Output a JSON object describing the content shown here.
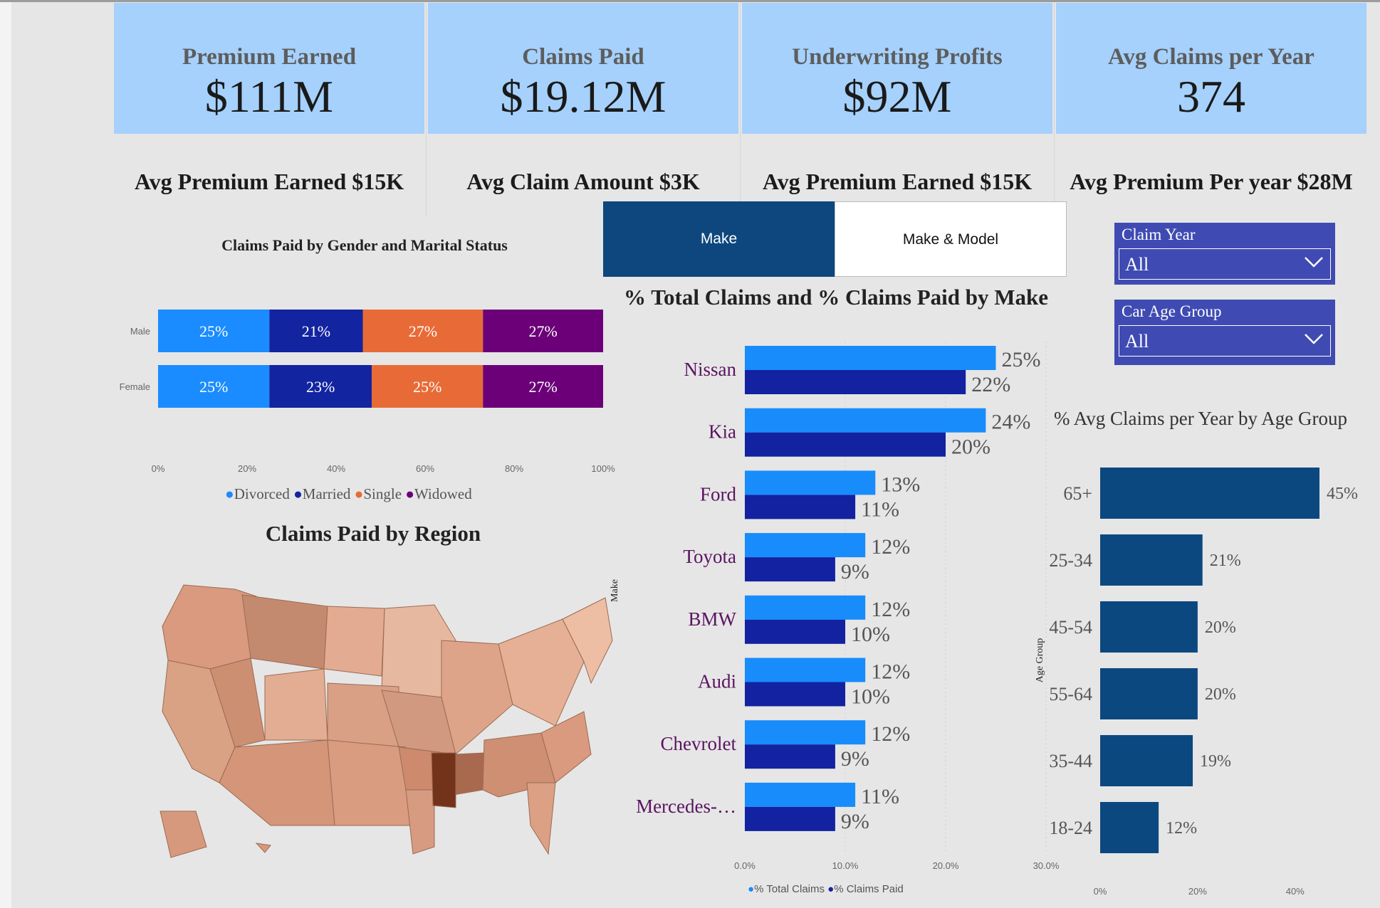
{
  "kpis": [
    {
      "title": "Premium Earned",
      "value": "$111M"
    },
    {
      "title": "Claims Paid",
      "value": "$19.12M"
    },
    {
      "title": "Underwriting Profits",
      "value": "$92M"
    },
    {
      "title": "Avg Claims per Year",
      "value": "374"
    }
  ],
  "sub_kpis": [
    "Avg Premium Earned $15K",
    "Avg Claim Amount $3K",
    "Avg Premium Earned $15K",
    "Avg Premium Per year $28M"
  ],
  "toggle": {
    "make_label": "Make",
    "make_model_label": "Make & Model"
  },
  "slicers": [
    {
      "label": "Claim Year",
      "value": "All"
    },
    {
      "label": "Car Age Group",
      "value": "All"
    }
  ],
  "colors": {
    "kpi_bg": "#a5d1fc",
    "divorced": "#1a8cff",
    "married": "#1224a0",
    "single": "#e86b37",
    "widowed": "#6b0078",
    "total_claims": "#188cfb",
    "claims_paid": "#1222a0",
    "age_bar": "#0c4880",
    "slicer_bg": "#3f4bb2",
    "map_high": "#73321a"
  },
  "map": {
    "title": "Claims Paid by Region",
    "axis_label": "Make"
  },
  "chart_data": [
    {
      "type": "bar",
      "orientation": "horizontal-stacked-100",
      "title": "Claims Paid by Gender and Marital Status",
      "categories": [
        "Male",
        "Female"
      ],
      "series": [
        {
          "name": "Divorced",
          "values": [
            25,
            25
          ]
        },
        {
          "name": "Married",
          "values": [
            21,
            23
          ]
        },
        {
          "name": "Single",
          "values": [
            27,
            25
          ]
        },
        {
          "name": "Widowed",
          "values": [
            27,
            27
          ]
        }
      ],
      "data_labels": [
        [
          "25%",
          "21%",
          "27%",
          "27%"
        ],
        [
          "25%",
          "23%",
          "25%",
          "27%"
        ]
      ],
      "xticks": [
        "0%",
        "20%",
        "40%",
        "60%",
        "80%",
        "100%"
      ],
      "xlim": [
        0,
        100
      ],
      "legend": "bottom"
    },
    {
      "type": "bar",
      "orientation": "horizontal-grouped",
      "title": "% Total Claims and % Claims Paid by Make",
      "ylabel": "Make",
      "categories": [
        "Nissan",
        "Kia",
        "Ford",
        "Toyota",
        "BMW",
        "Audi",
        "Chevrolet",
        "Mercedes-…"
      ],
      "series": [
        {
          "name": "% Total Claims",
          "values": [
            25,
            24,
            13,
            12,
            12,
            12,
            12,
            11
          ],
          "labels": [
            "25%",
            "24%",
            "13%",
            "12%",
            "12%",
            "12%",
            "12%",
            "11%"
          ]
        },
        {
          "name": "% Claims Paid",
          "values": [
            22,
            20,
            11,
            9,
            10,
            10,
            9,
            9
          ],
          "labels": [
            "22%",
            "20%",
            "11%",
            "9%",
            "10%",
            "10%",
            "9%",
            "9%"
          ]
        }
      ],
      "xticks": [
        "0.0%",
        "10.0%",
        "20.0%",
        "30.0%"
      ],
      "xlim": [
        0,
        30
      ],
      "legend": "bottom"
    },
    {
      "type": "bar",
      "orientation": "horizontal",
      "title": "% Avg Claims per Year by Age Group",
      "ylabel": "Age Group",
      "categories": [
        "65+",
        "25-34",
        "45-54",
        "55-64",
        "35-44",
        "18-24"
      ],
      "values": [
        45,
        21,
        20,
        20,
        19,
        12
      ],
      "labels": [
        "45%",
        "21%",
        "20%",
        "20%",
        "19%",
        "12%"
      ],
      "xticks": [
        "0%",
        "20%",
        "40%"
      ],
      "xlim": [
        0,
        50
      ]
    }
  ]
}
